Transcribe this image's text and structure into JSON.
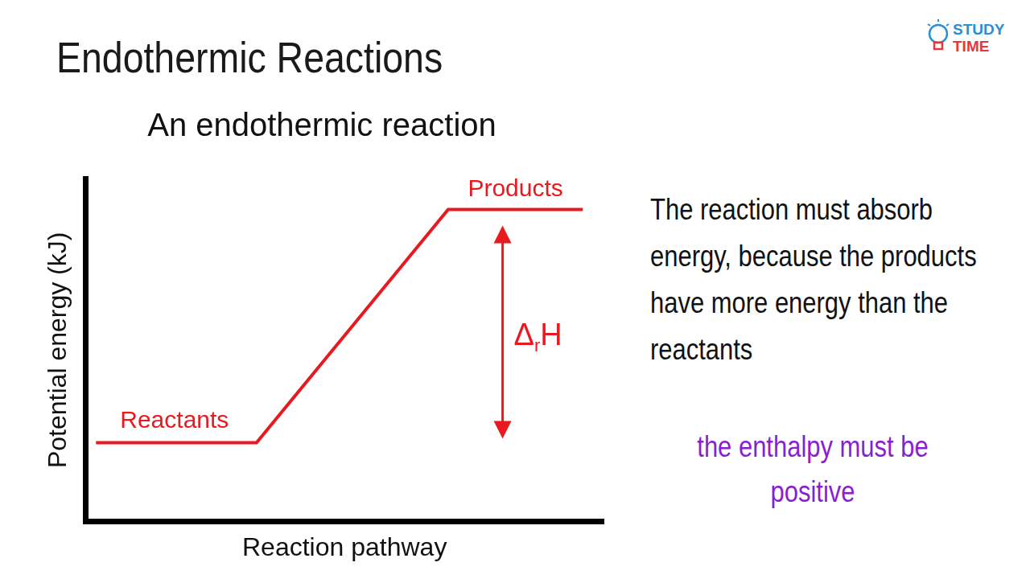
{
  "header": {
    "title": "Endothermic Reactions",
    "logo": [
      "STUDY",
      "TIME"
    ]
  },
  "chart_data": {
    "type": "line",
    "title": "An endothermic reaction",
    "x_label": "Reaction pathway",
    "y_label": "Potential energy (kJ)",
    "x": [
      2,
      33,
      70,
      96
    ],
    "values": [
      23,
      23,
      91,
      91
    ],
    "color": "#e8191f",
    "xlim": [
      0,
      100
    ],
    "ylim": [
      0,
      100
    ],
    "tick_labels": false,
    "grid": false,
    "point_labels": {
      "start": "Reactants",
      "end": "Products"
    },
    "annotations": [
      {
        "text": [
          "Δ",
          "r",
          "H"
        ],
        "from": 91,
        "to": 23
      }
    ]
  },
  "notes": [
    "The reaction must absorb energy, because the products have more energy than the reactants",
    "the enthalpy must be positive"
  ]
}
